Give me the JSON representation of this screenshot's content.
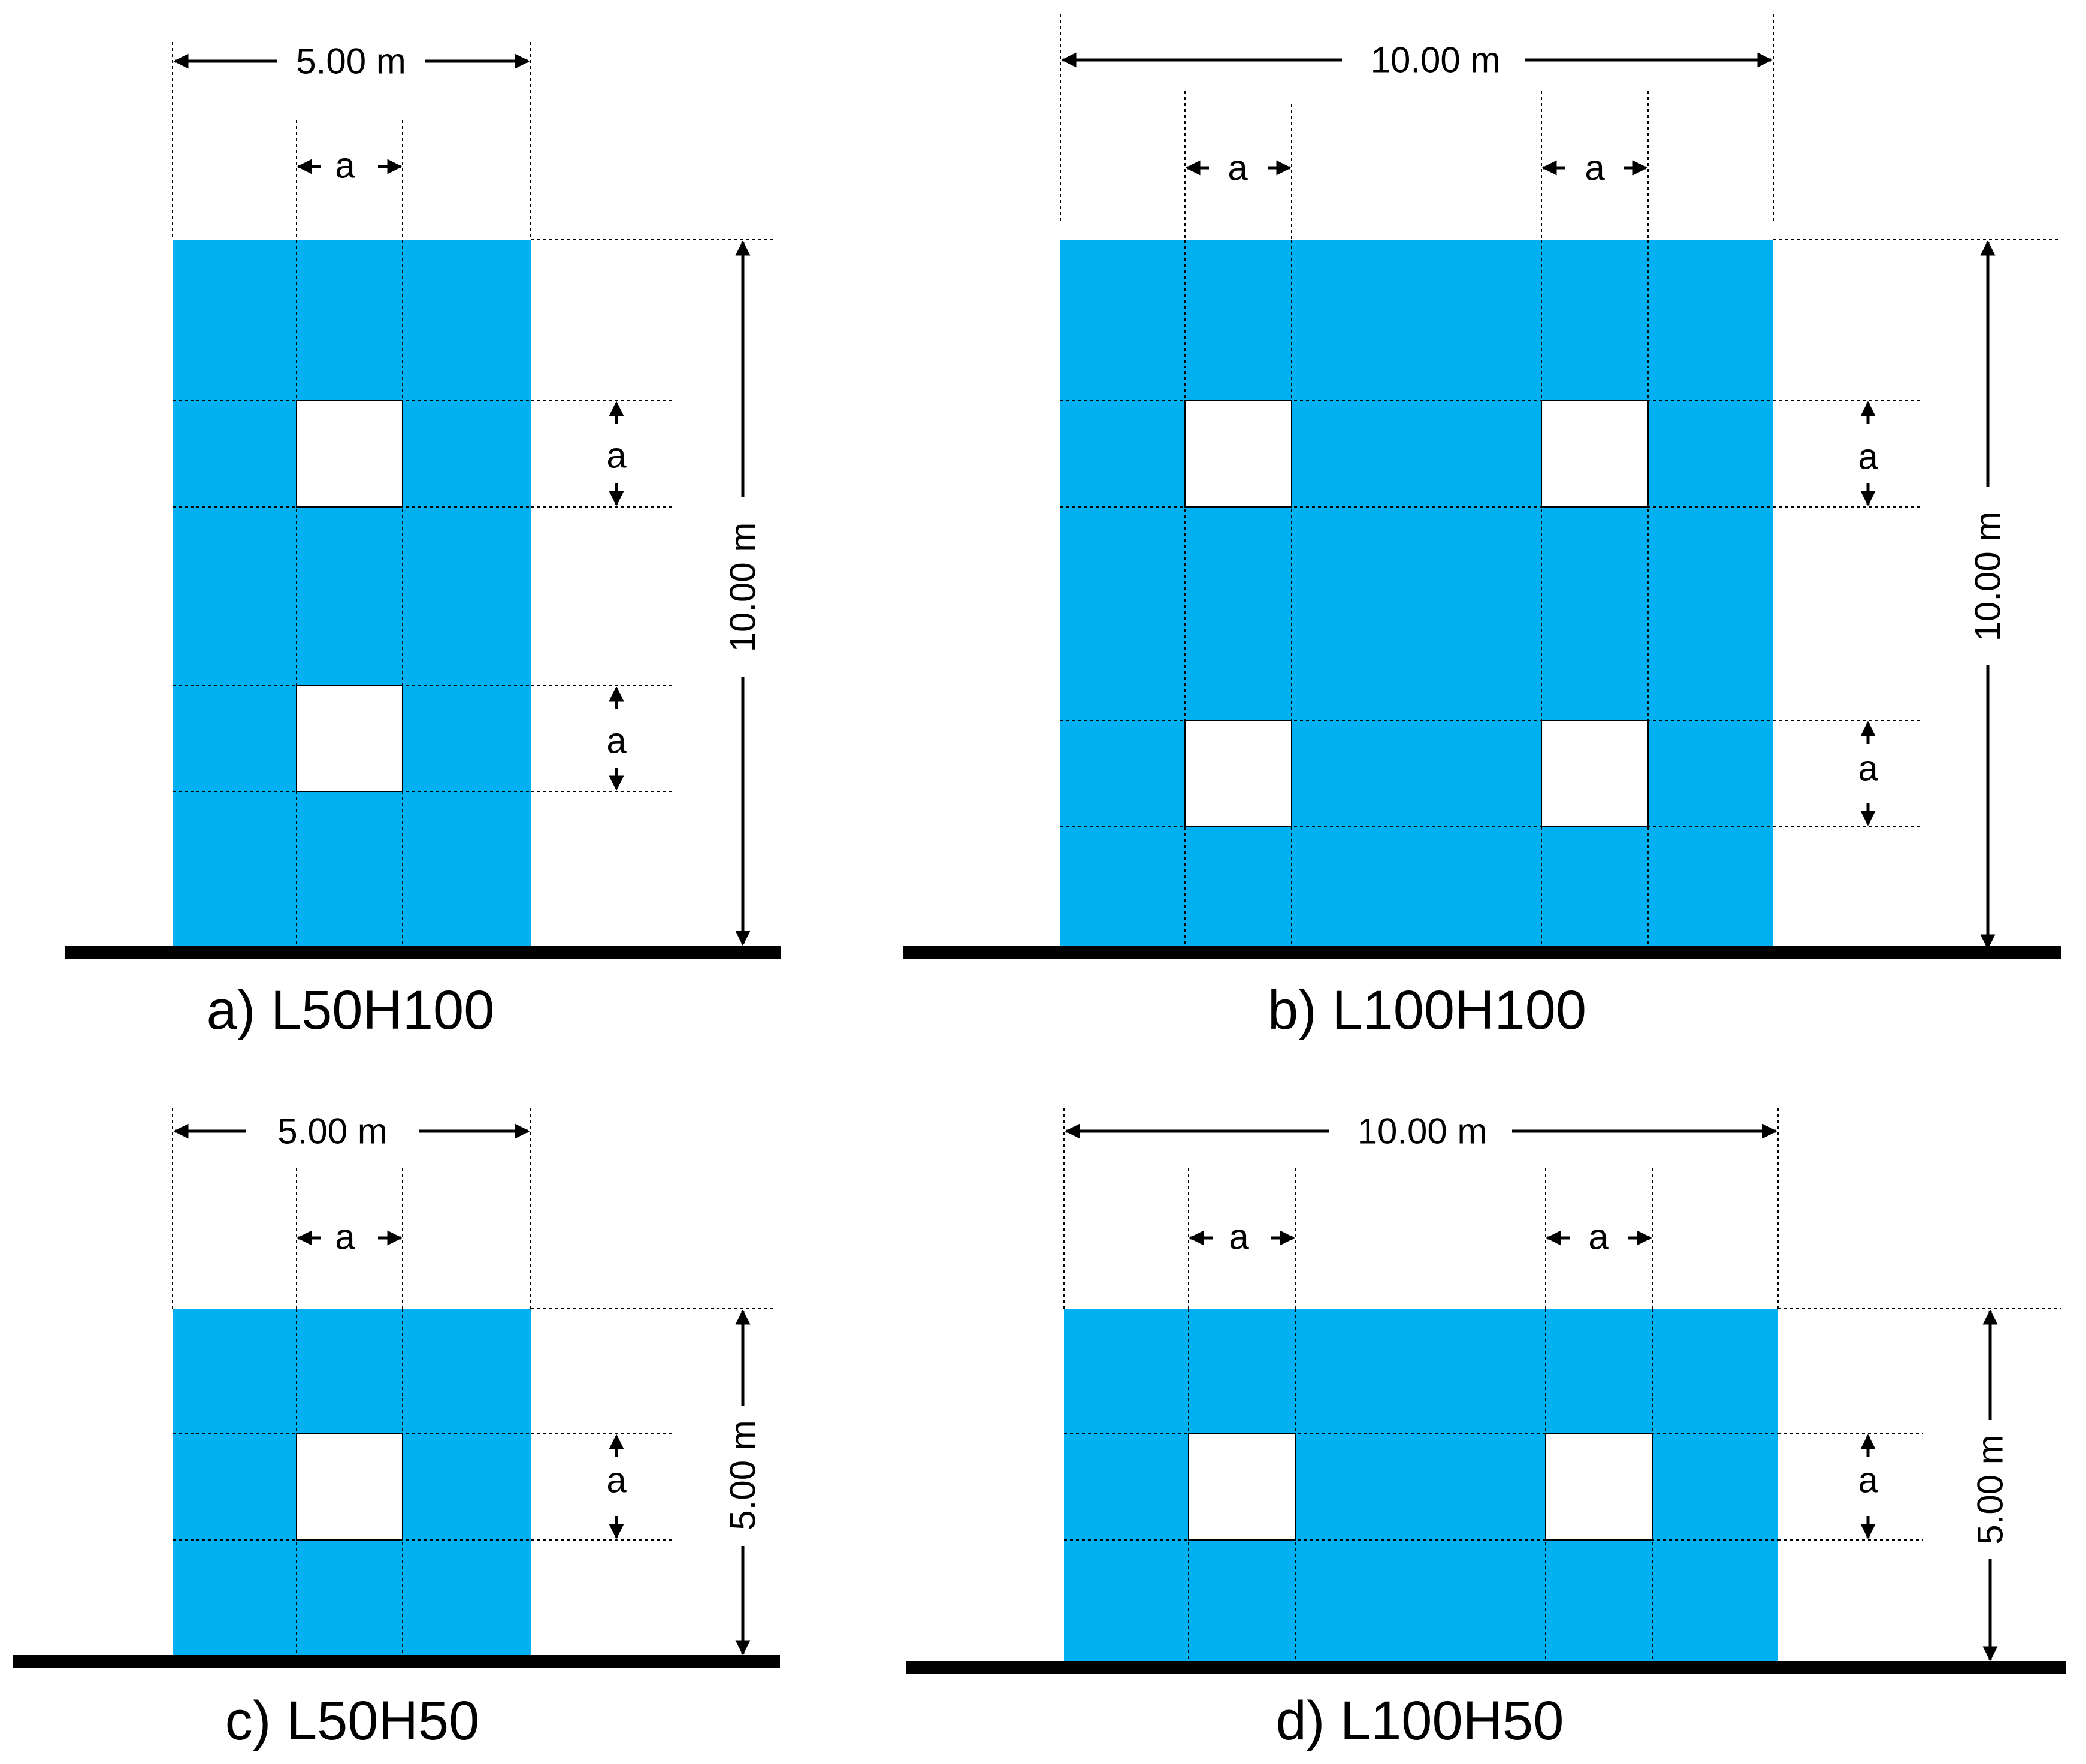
{
  "colors": {
    "wall": "#00B0F0",
    "opening": "#FFFFFF",
    "ink": "#000000"
  },
  "panels": [
    {
      "id": "a",
      "caption": "a) L50H100",
      "width_label": "5.00 m",
      "height_label": "10.00 m",
      "opening_label": "a",
      "wall_length_m": 5.0,
      "wall_height_m": 10.0,
      "openings_per_row": 1,
      "opening_rows": 2
    },
    {
      "id": "b",
      "caption": "b) L100H100",
      "width_label": "10.00 m",
      "height_label": "10.00 m",
      "opening_label": "a",
      "wall_length_m": 10.0,
      "wall_height_m": 10.0,
      "openings_per_row": 2,
      "opening_rows": 2
    },
    {
      "id": "c",
      "caption": "c) L50H50",
      "width_label": "5.00 m",
      "height_label": "5.00 m",
      "opening_label": "a",
      "wall_length_m": 5.0,
      "wall_height_m": 5.0,
      "openings_per_row": 1,
      "opening_rows": 1
    },
    {
      "id": "d",
      "caption": "d) L100H50",
      "width_label": "10.00 m",
      "height_label": "5.00 m",
      "opening_label": "a",
      "wall_length_m": 10.0,
      "wall_height_m": 5.0,
      "openings_per_row": 2,
      "opening_rows": 1
    }
  ]
}
